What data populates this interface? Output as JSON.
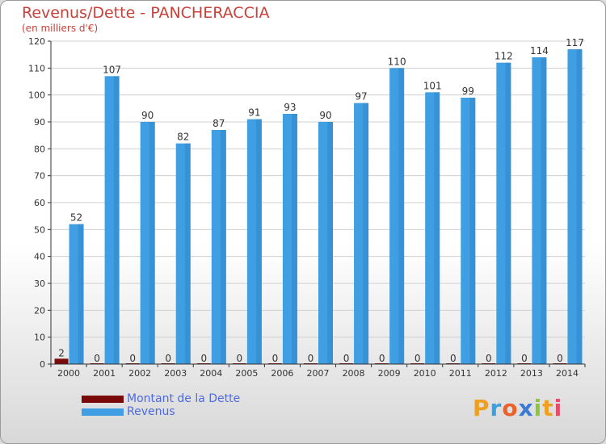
{
  "title": "Revenus/Dette - PANCHERACCIA",
  "subtitle": "(en milliers d'€)",
  "brand": {
    "letters": [
      "P",
      "r",
      "o",
      "x",
      "i",
      "t",
      "i"
    ],
    "colors": [
      "#f0a020",
      "#3aa0e0",
      "#e8622a",
      "#3a7ad8",
      "#8cc63f",
      "#f0a020",
      "#e84a6a"
    ]
  },
  "colors": {
    "dette": "#7a0a0a",
    "revenus": "#3f9fe2",
    "axis": "#333333",
    "grid": "#cfcfcf"
  },
  "chart_data": {
    "type": "bar",
    "title": "Revenus/Dette - PANCHERACCIA",
    "subtitle": "(en milliers d'€)",
    "categories": [
      "2000",
      "2001",
      "2002",
      "2003",
      "2004",
      "2005",
      "2006",
      "2007",
      "2008",
      "2009",
      "2010",
      "2011",
      "2012",
      "2013",
      "2014"
    ],
    "series": [
      {
        "name": "Montant de la Dette",
        "values": [
          2,
          0,
          0,
          0,
          0,
          0,
          0,
          0,
          0,
          0,
          0,
          0,
          0,
          0,
          0
        ],
        "color": "#7a0a0a"
      },
      {
        "name": "Revenus",
        "values": [
          52,
          107,
          90,
          82,
          87,
          91,
          93,
          90,
          97,
          110,
          101,
          99,
          112,
          114,
          117
        ],
        "color": "#3f9fe2"
      }
    ],
    "ylim": [
      0,
      120
    ],
    "yticks": [
      0,
      10,
      20,
      30,
      40,
      50,
      60,
      70,
      80,
      90,
      100,
      110,
      120
    ],
    "grid": true,
    "legend": "bottom-left"
  }
}
